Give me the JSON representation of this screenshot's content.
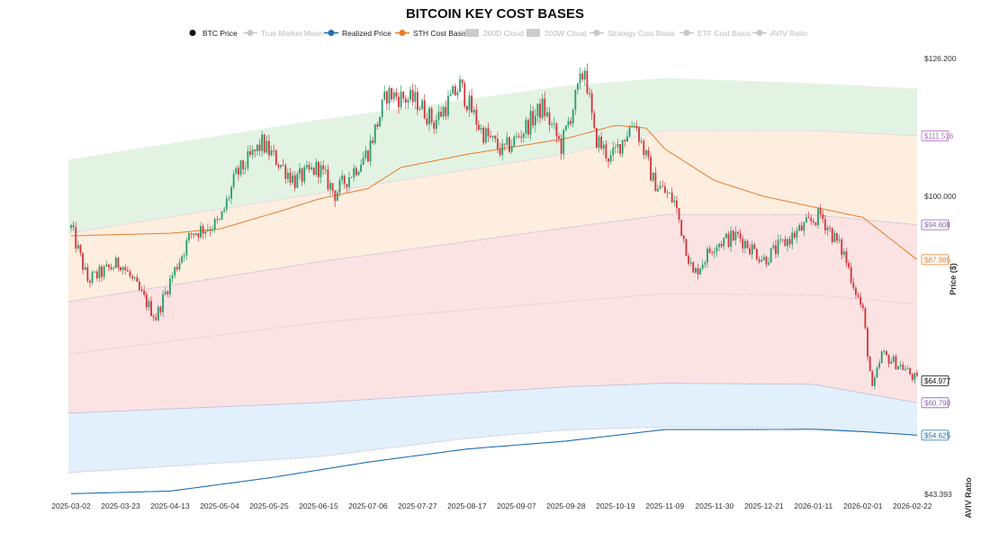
{
  "chart_data": {
    "type": "candlestick",
    "title": "BITCOIN KEY COST BASES",
    "ylabel": "Price ($)",
    "y2label": "AVIV Ratio",
    "legend": [
      {
        "label": "BTC Price",
        "color": "#111111",
        "active": true
      },
      {
        "label": "True Market Mean",
        "color": "#c8c8c8",
        "active": false
      },
      {
        "label": "Realized Price",
        "color": "#1f6fb4",
        "active": true
      },
      {
        "label": "STH Cost Basis",
        "color": "#e87d2a",
        "active": true
      },
      {
        "label": "200D Cloud",
        "color": "#cccccc",
        "active": false,
        "box": true
      },
      {
        "label": "200W Cloud",
        "color": "#cccccc",
        "active": false,
        "box": true
      },
      {
        "label": "Strategy Cost Basis",
        "color": "#c8c8c8",
        "active": false
      },
      {
        "label": "ETF Cost Basis",
        "color": "#c8c8c8",
        "active": false
      },
      {
        "label": "AVIV Ratio",
        "color": "#c8c8c8",
        "active": false
      }
    ],
    "x_ticks": [
      "2025-03-02",
      "2025-03-23",
      "2025-04-13",
      "2025-05-04",
      "2025-05-25",
      "2025-06-15",
      "2025-07-06",
      "2025-07-27",
      "2025-08-17",
      "2025-09-07",
      "2025-09-28",
      "2025-10-19",
      "2025-11-09",
      "2025-11-30",
      "2025-12-21",
      "2026-01-11",
      "2026-02-01",
      "2026-02-22"
    ],
    "y_ticks": [
      "$126.200",
      "$100.000",
      "$43.393"
    ],
    "ylim": [
      43393,
      126200
    ],
    "end_labels": [
      {
        "label": "$111.516",
        "color": "#b070c0"
      },
      {
        "label": "$94.608",
        "color": "#8a5fb0"
      },
      {
        "label": "$87.985",
        "color": "#e87d2a"
      },
      {
        "label": "$64.977",
        "color": "#111111"
      },
      {
        "label": "$60.790",
        "color": "#8a5fb0"
      },
      {
        "label": "$54.625",
        "color": "#1f6fb4"
      }
    ],
    "price_anchors": [
      [
        "2025-03-02",
        94000
      ],
      [
        "2025-03-09",
        84000
      ],
      [
        "2025-03-23",
        87500
      ],
      [
        "2025-04-07",
        77000
      ],
      [
        "2025-04-13",
        84000
      ],
      [
        "2025-04-22",
        93000
      ],
      [
        "2025-05-04",
        95000
      ],
      [
        "2025-05-11",
        104000
      ],
      [
        "2025-05-22",
        110000
      ],
      [
        "2025-06-05",
        103000
      ],
      [
        "2025-06-15",
        105500
      ],
      [
        "2025-06-22",
        100500
      ],
      [
        "2025-07-06",
        108500
      ],
      [
        "2025-07-14",
        119500
      ],
      [
        "2025-07-27",
        118000
      ],
      [
        "2025-08-03",
        114000
      ],
      [
        "2025-08-14",
        121000
      ],
      [
        "2025-08-23",
        112500
      ],
      [
        "2025-09-01",
        108500
      ],
      [
        "2025-09-07",
        111000
      ],
      [
        "2025-09-18",
        117000
      ],
      [
        "2025-09-26",
        109500
      ],
      [
        "2025-10-06",
        124500
      ],
      [
        "2025-10-10",
        111500
      ],
      [
        "2025-10-17",
        107000
      ],
      [
        "2025-10-27",
        114500
      ],
      [
        "2025-11-04",
        103000
      ],
      [
        "2025-11-13",
        99000
      ],
      [
        "2025-11-21",
        85000
      ],
      [
        "2025-11-30",
        91000
      ],
      [
        "2025-12-10",
        92500
      ],
      [
        "2025-12-21",
        88000
      ],
      [
        "2026-01-05",
        93500
      ],
      [
        "2026-01-14",
        96500
      ],
      [
        "2026-01-24",
        89000
      ],
      [
        "2026-02-01",
        78000
      ],
      [
        "2026-02-05",
        63000
      ],
      [
        "2026-02-09",
        70000
      ],
      [
        "2026-02-18",
        67500
      ],
      [
        "2026-02-24",
        64977
      ]
    ],
    "realized_price_anchors": [
      [
        "2025-03-02",
        43500
      ],
      [
        "2025-04-13",
        44000
      ],
      [
        "2025-05-25",
        46500
      ],
      [
        "2025-07-06",
        49500
      ],
      [
        "2025-08-17",
        52000
      ],
      [
        "2025-09-28",
        53500
      ],
      [
        "2025-11-09",
        55700
      ],
      [
        "2025-12-21",
        55700
      ],
      [
        "2026-01-11",
        55750
      ],
      [
        "2026-02-01",
        55300
      ],
      [
        "2026-02-24",
        54625
      ]
    ],
    "sth_cost_basis_anchors": [
      [
        "2025-03-02",
        92500
      ],
      [
        "2025-04-13",
        93000
      ],
      [
        "2025-05-04",
        93800
      ],
      [
        "2025-06-01",
        97500
      ],
      [
        "2025-06-15",
        99500
      ],
      [
        "2025-07-06",
        101500
      ],
      [
        "2025-07-20",
        105500
      ],
      [
        "2025-08-17",
        108000
      ],
      [
        "2025-09-28",
        111000
      ],
      [
        "2025-10-19",
        113500
      ],
      [
        "2025-11-01",
        113000
      ],
      [
        "2025-11-09",
        109000
      ],
      [
        "2025-11-30",
        103000
      ],
      [
        "2025-12-21",
        100000
      ],
      [
        "2026-01-11",
        98000
      ],
      [
        "2026-02-01",
        96000
      ],
      [
        "2026-02-24",
        87985
      ]
    ],
    "band_lines": {
      "top_anchors": [
        [
          "2025-03-02",
          107000
        ],
        [
          "2025-06-15",
          114500
        ],
        [
          "2025-09-28",
          121000
        ],
        [
          "2025-11-09",
          122500
        ],
        [
          "2026-01-11",
          121500
        ],
        [
          "2026-02-24",
          120500
        ]
      ],
      "upper_anchors": [
        [
          "2025-03-02",
          93000
        ],
        [
          "2025-06-15",
          100500
        ],
        [
          "2025-09-28",
          108000
        ],
        [
          "2025-11-09",
          112500
        ],
        [
          "2026-01-11",
          112500
        ],
        [
          "2026-02-24",
          111516
        ]
      ],
      "mid_anchors": [
        [
          "2025-03-02",
          80000
        ],
        [
          "2025-06-15",
          87500
        ],
        [
          "2025-09-28",
          94000
        ],
        [
          "2025-11-09",
          96500
        ],
        [
          "2026-01-11",
          96500
        ],
        [
          "2026-02-24",
          94608
        ]
      ],
      "lower_anchors": [
        [
          "2025-03-02",
          70000
        ],
        [
          "2025-06-15",
          76000
        ],
        [
          "2025-09-28",
          80000
        ],
        [
          "2025-11-09",
          81500
        ],
        [
          "2026-01-11",
          81300
        ],
        [
          "2026-02-24",
          79500
        ]
      ],
      "bottom_anchors": [
        [
          "2025-03-02",
          58800
        ],
        [
          "2025-06-15",
          60800
        ],
        [
          "2025-09-28",
          63800
        ],
        [
          "2025-11-09",
          64500
        ],
        [
          "2026-01-11",
          64300
        ],
        [
          "2026-02-24",
          60790
        ]
      ],
      "blue_bottom_anchors": [
        [
          "2025-03-02",
          47500
        ],
        [
          "2025-06-15",
          50500
        ],
        [
          "2025-08-17",
          54000
        ],
        [
          "2025-09-28",
          55600
        ],
        [
          "2025-11-09",
          56200
        ],
        [
          "2026-01-11",
          56000
        ],
        [
          "2026-02-24",
          54625
        ]
      ]
    },
    "colors": {
      "up": "#2a9d6a",
      "down": "#d6343b",
      "zone_top": "#e3f3e3",
      "zone_upper": "#fdeee0",
      "zone_mid": "#fbe3e4",
      "zone_low": "#e1f0fa"
    }
  }
}
